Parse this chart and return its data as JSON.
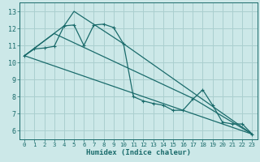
{
  "bg_color": "#cce8e8",
  "grid_color": "#aacfcf",
  "line_color": "#1a6b6b",
  "xlabel": "Humidex (Indice chaleur)",
  "xlim": [
    -0.5,
    23.5
  ],
  "ylim": [
    5.5,
    13.5
  ],
  "xticks": [
    0,
    1,
    2,
    3,
    4,
    5,
    6,
    7,
    8,
    9,
    10,
    11,
    12,
    13,
    14,
    15,
    16,
    17,
    18,
    19,
    20,
    21,
    22,
    23
  ],
  "yticks": [
    6,
    7,
    8,
    9,
    10,
    11,
    12,
    13
  ],
  "series1_x": [
    0,
    1,
    2,
    3,
    4,
    5,
    6,
    7,
    8,
    9,
    10,
    11,
    12,
    13,
    14,
    15,
    16,
    17,
    18,
    19,
    20,
    21,
    22,
    23
  ],
  "series1_y": [
    10.4,
    10.8,
    10.85,
    10.95,
    12.15,
    12.2,
    11.0,
    12.2,
    12.25,
    12.05,
    11.1,
    8.0,
    7.75,
    7.6,
    7.5,
    7.2,
    7.2,
    7.85,
    8.4,
    7.5,
    6.5,
    6.4,
    6.4,
    5.8
  ],
  "line2_x": [
    0,
    4,
    5,
    10,
    23
  ],
  "line2_y": [
    10.4,
    12.15,
    13.0,
    11.1,
    5.8
  ],
  "line3_x": [
    0,
    23
  ],
  "line3_y": [
    10.4,
    5.8
  ],
  "line4_x": [
    0,
    3,
    17,
    23
  ],
  "line4_y": [
    10.4,
    11.7,
    7.9,
    5.8
  ]
}
